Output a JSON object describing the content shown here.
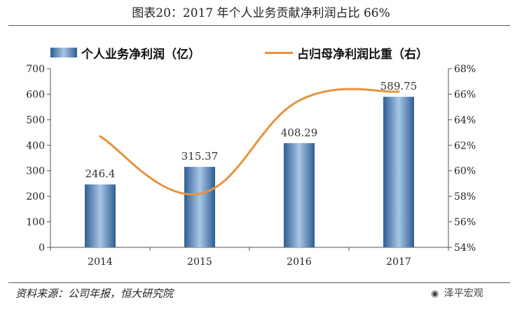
{
  "title": "图表20：2017 年个人业务贡献净利润占比 66%",
  "source": "资料来源：公司年报，恒大研究院",
  "watermark": "泽平宏观",
  "legend": {
    "bar_label": "个人业务净利润（亿）",
    "line_label": "占归母净利润比重（右）"
  },
  "colors": {
    "bar_dark": "#2f5e93",
    "bar_light": "#a9c6e6",
    "line": "#e8923f",
    "axis": "#555555"
  },
  "chart_data": {
    "type": "bar",
    "categories": [
      "2014",
      "2015",
      "2016",
      "2017"
    ],
    "series": [
      {
        "name": "个人业务净利润（亿）",
        "type": "bar",
        "axis": "left",
        "values": [
          246.4,
          315.37,
          408.29,
          589.75
        ],
        "labels": [
          "246.4",
          "315.37",
          "408.29",
          "589.75"
        ]
      },
      {
        "name": "占归母净利润比重（右）",
        "type": "line",
        "axis": "right",
        "values": [
          62.7,
          58.2,
          65.5,
          66.2
        ]
      }
    ],
    "ylim_left": [
      0,
      700
    ],
    "yticks_left": [
      "0",
      "100",
      "200",
      "300",
      "400",
      "500",
      "600",
      "700"
    ],
    "ylim_right": [
      54,
      68
    ],
    "yticks_right": [
      "54%",
      "56%",
      "58%",
      "60%",
      "62%",
      "64%",
      "66%",
      "68%"
    ],
    "grid": false,
    "legend_position": "top"
  }
}
